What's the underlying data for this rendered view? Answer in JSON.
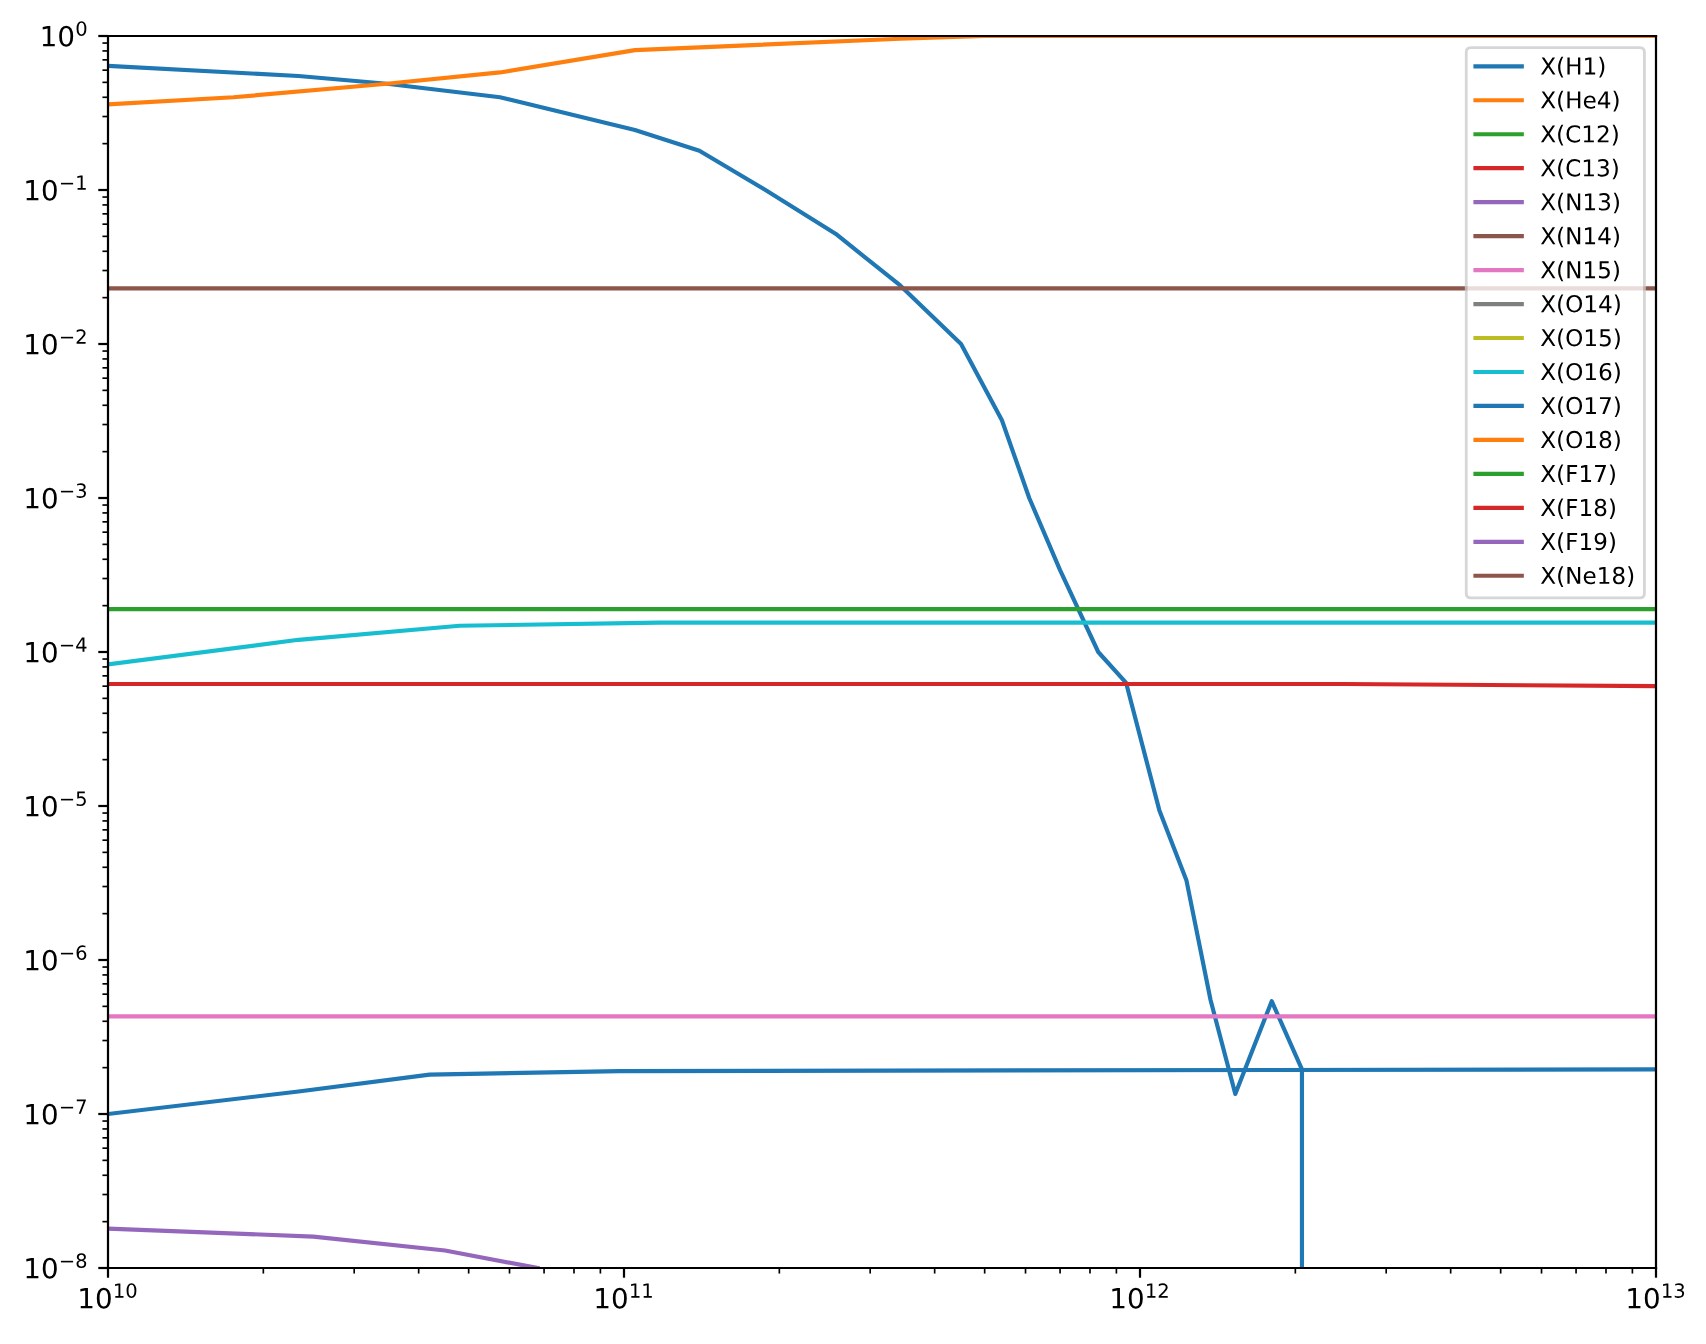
{
  "chart_data": {
    "type": "line",
    "log": "xy",
    "xlim": [
      10000000000.0,
      10000000000000.0
    ],
    "ylim": [
      1e-08,
      1
    ],
    "xticks": [
      {
        "value": 10000000000.0,
        "label": "10$^{10}$"
      },
      {
        "value": 100000000000.0,
        "label": "10$^{11}$"
      },
      {
        "value": 1000000000000.0,
        "label": "10$^{12}$"
      },
      {
        "value": 10000000000000.0,
        "label": "10$^{13}$"
      }
    ],
    "yticks": [
      {
        "value": 1e-08,
        "label": "10$^{−8}$"
      },
      {
        "value": 1e-07,
        "label": "10$^{−7}$"
      },
      {
        "value": 1e-06,
        "label": "10$^{−6}$"
      },
      {
        "value": 1e-05,
        "label": "10$^{−5}$"
      },
      {
        "value": 0.0001,
        "label": "10$^{−4}$"
      },
      {
        "value": 0.001,
        "label": "10$^{−3}$"
      },
      {
        "value": 0.01,
        "label": "10$^{−2}$"
      },
      {
        "value": 0.1,
        "label": "10$^{−1}$"
      },
      {
        "value": 1,
        "label": "10$^{0}$"
      }
    ],
    "legend": "top right",
    "grid": false,
    "series": [
      {
        "name": "X(H1)",
        "color": "#1f77b4",
        "x": [
          10000000000.0,
          23400000000.0,
          34700000000.0,
          57500000000.0,
          105000000000.0,
          140000000000.0,
          188000000000.0,
          257000000000.0,
          343000000000.0,
          450000000000.0,
          540000000000.0,
          610000000000.0,
          700000000000.0,
          830000000000.0,
          940000000000.0,
          1090000000000.0,
          1230000000000.0,
          1370000000000.0,
          1530000000000.0,
          1800000000000.0,
          2060000000000.0,
          2060000000000.0
        ],
        "values": [
          0.64,
          0.55,
          0.49,
          0.4,
          0.245,
          0.18,
          0.1,
          0.052,
          0.024,
          0.01,
          0.0032,
          0.001,
          0.00034,
          0.0001,
          6.3e-05,
          9.4e-06,
          3.3e-06,
          5.5e-07,
          1.35e-07,
          5.4e-07,
          1.95e-07,
          1e-08
        ]
      },
      {
        "name": "X(He4)",
        "color": "#ff7f0e",
        "x": [
          10000000000.0,
          17500000000.0,
          34700000000.0,
          57500000000.0,
          105000000000.0,
          343000000000.0,
          500000000000.0,
          10000000000000.0
        ],
        "values": [
          0.36,
          0.4,
          0.49,
          0.58,
          0.81,
          0.96,
          1,
          1
        ]
      },
      {
        "name": "X(C12)",
        "color": "#2ca02c",
        "x": [
          10000000000.0,
          10000000000000.0
        ],
        "values": [
          0.00019,
          0.00019
        ]
      },
      {
        "name": "X(C13)",
        "color": "#d62728",
        "x": [
          10000000000.0,
          2500000000000.0,
          10000000000000.0
        ],
        "values": [
          6.2e-05,
          6.2e-05,
          6e-05
        ]
      },
      {
        "name": "X(N13)",
        "color": "#9467bd",
        "x": [
          10000000000.0,
          25000000000.0,
          45000000000.0,
          68000000000.0
        ],
        "values": [
          1.8e-08,
          1.6e-08,
          1.3e-08,
          1e-08
        ]
      },
      {
        "name": "X(N14)",
        "color": "#8c564b",
        "x": [
          10000000000.0,
          10000000000000.0
        ],
        "values": [
          0.023,
          0.023
        ]
      },
      {
        "name": "X(N15)",
        "color": "#e377c2",
        "x": [
          10000000000.0,
          10000000000000.0
        ],
        "values": [
          4.3e-07,
          4.3e-07
        ]
      },
      {
        "name": "X(O14)",
        "color": "#7f7f7f"
      },
      {
        "name": "X(O15)",
        "color": "#bcbd22"
      },
      {
        "name": "X(O16)",
        "color": "#17becf",
        "x": [
          10000000000.0,
          23400000000.0,
          48000000000.0,
          117000000000.0,
          10000000000000.0
        ],
        "values": [
          8.3e-05,
          0.00012,
          0.000148,
          0.000155,
          0.000155
        ]
      },
      {
        "name": "X(O17)",
        "color": "#1f77b4",
        "x": [
          10000000000.0,
          23400000000.0,
          42000000000.0,
          98000000000.0,
          10000000000000.0
        ],
        "values": [
          1e-07,
          1.4e-07,
          1.8e-07,
          1.9e-07,
          1.95e-07
        ]
      },
      {
        "name": "X(O18)",
        "color": "#ff7f0e"
      },
      {
        "name": "X(F17)",
        "color": "#2ca02c"
      },
      {
        "name": "X(F18)",
        "color": "#d62728"
      },
      {
        "name": "X(F19)",
        "color": "#9467bd"
      },
      {
        "name": "X(Ne18)",
        "color": "#8c564b"
      }
    ]
  }
}
